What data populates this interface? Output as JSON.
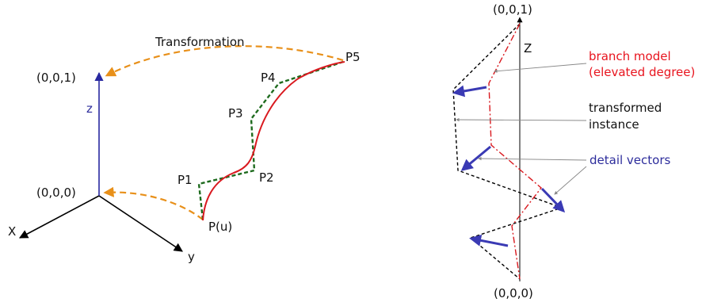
{
  "left": {
    "transformation": "Transformation",
    "origin_top": "(0,0,1)",
    "origin_bottom": "(0,0,0)",
    "axis_x": "X",
    "axis_y": "y",
    "axis_z": "z",
    "p1": "P1",
    "p2": "P2",
    "p3": "P3",
    "p4": "P4",
    "p5": "P5",
    "pu": "P(u)"
  },
  "right": {
    "top": "(0,0,1)",
    "bottom": "(0,0,0)",
    "axis_z": "Z",
    "branch_line1": "branch model",
    "branch_line2": "(elevated degree)",
    "transformed_line1": "transformed",
    "transformed_line2": "instance",
    "detail_vectors": "detail vectors"
  },
  "colors": {
    "curve": "#d9191f",
    "control_polygon": "#1e6b1e",
    "arrow_orange": "#e8901a",
    "axis_blue": "#2828a0",
    "detail_vector": "#3a3ab4",
    "label_red": "#e8141e",
    "label_blue": "#2d2d9c"
  }
}
